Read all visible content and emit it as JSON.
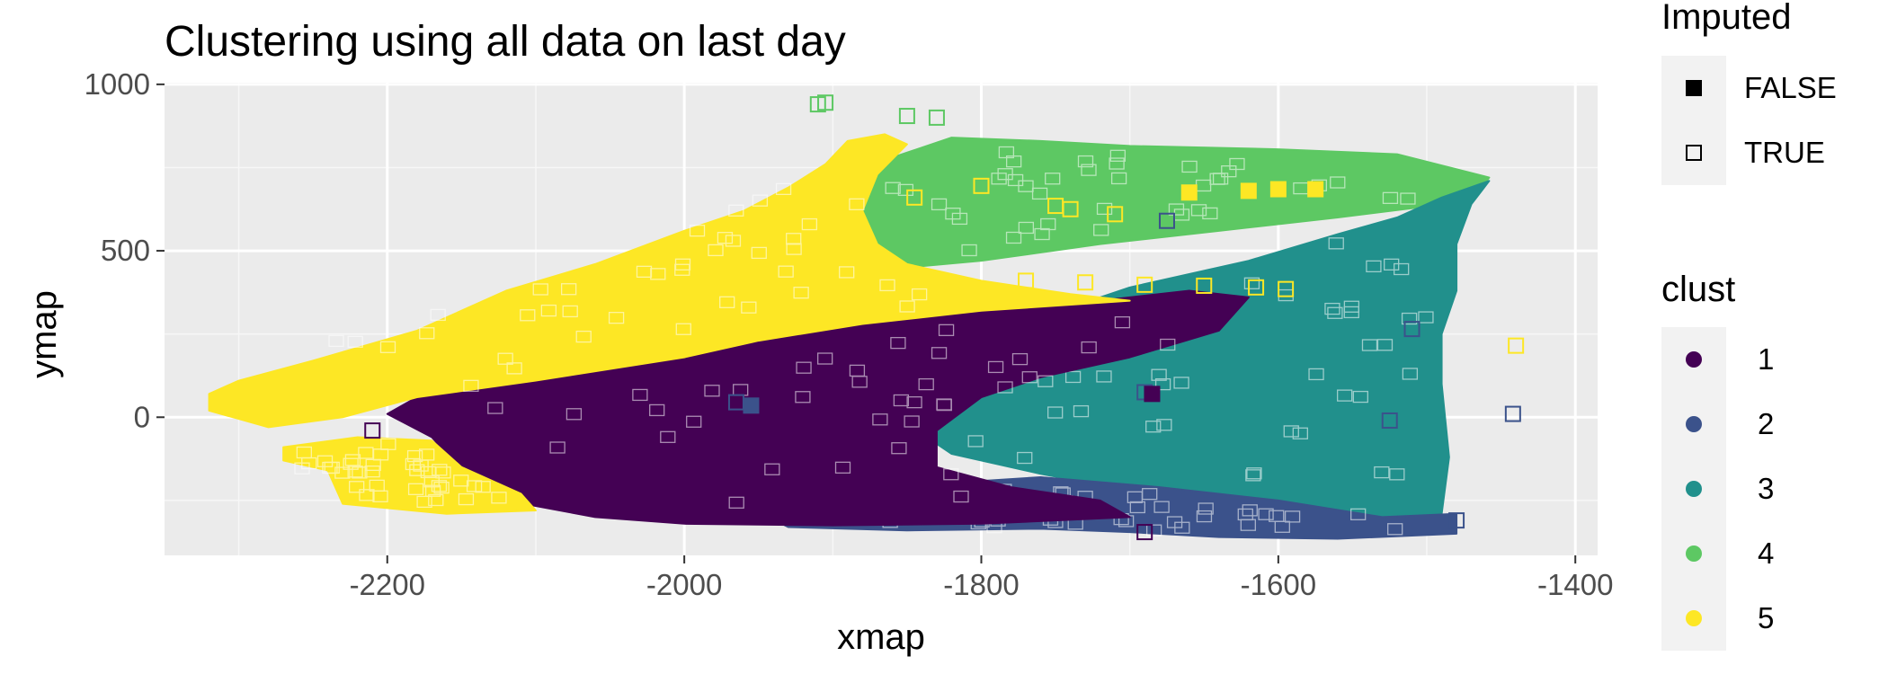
{
  "chart_data": {
    "type": "scatter",
    "title": "Clustering using all data on last day",
    "xlabel": "xmap",
    "ylabel": "ymap",
    "xlim": [
      -2350,
      -1385
    ],
    "ylim": [
      -415,
      1005
    ],
    "x_ticks": [
      {
        "value": -2200,
        "label": "-2200"
      },
      {
        "value": -2000,
        "label": "-2000"
      },
      {
        "value": -1800,
        "label": "-1800"
      },
      {
        "value": -1600,
        "label": "-1600"
      },
      {
        "value": -1400,
        "label": "-1400"
      }
    ],
    "y_ticks": [
      {
        "value": 1000,
        "label": "1000"
      },
      {
        "value": 500,
        "label": "500"
      },
      {
        "value": 0,
        "label": "0"
      }
    ],
    "minor_x": [
      -2300,
      -2100,
      -1900,
      -1700,
      -1500
    ],
    "minor_y": [
      750,
      250,
      -250
    ],
    "panel_background": "#ebebeb",
    "grid": true,
    "legend_placement": "right",
    "legends": {
      "imputed": {
        "title": "Imputed",
        "items": [
          {
            "label": "FALSE",
            "shape": "filled-square"
          },
          {
            "label": "TRUE",
            "shape": "open-square"
          }
        ]
      },
      "clust": {
        "title": "clust",
        "items": [
          {
            "label": "1",
            "color": "#440154"
          },
          {
            "label": "2",
            "color": "#3b528b"
          },
          {
            "label": "3",
            "color": "#21908c"
          },
          {
            "label": "4",
            "color": "#5dc863"
          },
          {
            "label": "5",
            "color": "#fde725"
          }
        ]
      }
    },
    "regions": [
      {
        "cluster": "4",
        "polygon": [
          [
            -1895,
            700
          ],
          [
            -1860,
            780
          ],
          [
            -1820,
            840
          ],
          [
            -1760,
            830
          ],
          [
            -1700,
            815
          ],
          [
            -1600,
            805
          ],
          [
            -1520,
            790
          ],
          [
            -1458,
            720
          ],
          [
            -1470,
            650
          ],
          [
            -1560,
            600
          ],
          [
            -1640,
            560
          ],
          [
            -1720,
            520
          ],
          [
            -1800,
            470
          ],
          [
            -1850,
            450
          ],
          [
            -1890,
            470
          ],
          [
            -1910,
            600
          ]
        ]
      },
      {
        "cluster": "3",
        "polygon": [
          [
            -1458,
            710
          ],
          [
            -1470,
            640
          ],
          [
            -1480,
            520
          ],
          [
            -1480,
            380
          ],
          [
            -1490,
            250
          ],
          [
            -1490,
            100
          ],
          [
            -1485,
            -120
          ],
          [
            -1490,
            -290
          ],
          [
            -1540,
            -310
          ],
          [
            -1620,
            -260
          ],
          [
            -1700,
            -220
          ],
          [
            -1760,
            -170
          ],
          [
            -1820,
            -110
          ],
          [
            -1850,
            -20
          ],
          [
            -1860,
            80
          ],
          [
            -1830,
            200
          ],
          [
            -1760,
            300
          ],
          [
            -1700,
            390
          ],
          [
            -1620,
            470
          ],
          [
            -1560,
            550
          ],
          [
            -1520,
            600
          ],
          [
            -1490,
            660
          ]
        ]
      },
      {
        "cluster": "2",
        "polygon": [
          [
            -1480,
            -290
          ],
          [
            -1530,
            -300
          ],
          [
            -1600,
            -250
          ],
          [
            -1680,
            -210
          ],
          [
            -1760,
            -180
          ],
          [
            -1830,
            -200
          ],
          [
            -1900,
            -250
          ],
          [
            -1950,
            -285
          ],
          [
            -1930,
            -330
          ],
          [
            -1850,
            -340
          ],
          [
            -1760,
            -335
          ],
          [
            -1700,
            -345
          ],
          [
            -1640,
            -360
          ],
          [
            -1560,
            -365
          ],
          [
            -1480,
            -350
          ]
        ]
      },
      {
        "cluster": "1",
        "polygon": [
          [
            -2180,
            60
          ],
          [
            -2100,
            110
          ],
          [
            -2000,
            180
          ],
          [
            -1950,
            230
          ],
          [
            -1880,
            280
          ],
          [
            -1800,
            320
          ],
          [
            -1720,
            350
          ],
          [
            -1660,
            380
          ],
          [
            -1620,
            360
          ],
          [
            -1640,
            260
          ],
          [
            -1700,
            180
          ],
          [
            -1760,
            120
          ],
          [
            -1800,
            60
          ],
          [
            -1830,
            -40
          ],
          [
            -1830,
            -150
          ],
          [
            -1780,
            -210
          ],
          [
            -1720,
            -250
          ],
          [
            -1700,
            -300
          ],
          [
            -1800,
            -320
          ],
          [
            -1900,
            -325
          ],
          [
            -2000,
            -320
          ],
          [
            -2060,
            -300
          ],
          [
            -2120,
            -250
          ],
          [
            -2150,
            -160
          ],
          [
            -2170,
            -60
          ],
          [
            -2200,
            10
          ]
        ]
      },
      {
        "cluster": "5",
        "polygon": [
          [
            -2320,
            70
          ],
          [
            -2300,
            110
          ],
          [
            -2250,
            170
          ],
          [
            -2180,
            260
          ],
          [
            -2120,
            380
          ],
          [
            -2060,
            460
          ],
          [
            -2000,
            560
          ],
          [
            -1960,
            620
          ],
          [
            -1930,
            690
          ],
          [
            -1905,
            760
          ],
          [
            -1890,
            830
          ],
          [
            -1865,
            850
          ],
          [
            -1850,
            820
          ],
          [
            -1870,
            730
          ],
          [
            -1880,
            620
          ],
          [
            -1870,
            520
          ],
          [
            -1850,
            460
          ],
          [
            -1800,
            410
          ],
          [
            -1740,
            370
          ],
          [
            -1700,
            350
          ],
          [
            -1800,
            320
          ],
          [
            -1880,
            280
          ],
          [
            -1950,
            230
          ],
          [
            -2000,
            180
          ],
          [
            -2100,
            110
          ],
          [
            -2180,
            60
          ],
          [
            -2230,
            0
          ],
          [
            -2280,
            -30
          ],
          [
            -2320,
            20
          ]
        ]
      },
      {
        "cluster": "5",
        "polygon": [
          [
            -2270,
            -90
          ],
          [
            -2220,
            -60
          ],
          [
            -2170,
            -70
          ],
          [
            -2150,
            -150
          ],
          [
            -2110,
            -230
          ],
          [
            -2100,
            -280
          ],
          [
            -2160,
            -290
          ],
          [
            -2230,
            -260
          ],
          [
            -2240,
            -160
          ],
          [
            -2270,
            -130
          ]
        ]
      }
    ],
    "notable_points": [
      {
        "x": -1440,
        "y": 215,
        "cluster": "5",
        "imputed": "TRUE"
      },
      {
        "x": -1442,
        "y": 10,
        "cluster": "2",
        "imputed": "TRUE"
      },
      {
        "x": -1510,
        "y": 265,
        "cluster": "2",
        "imputed": "TRUE"
      },
      {
        "x": -1525,
        "y": -10,
        "cluster": "2",
        "imputed": "TRUE"
      },
      {
        "x": -1675,
        "y": 590,
        "cluster": "2",
        "imputed": "TRUE"
      },
      {
        "x": -1910,
        "y": 940,
        "cluster": "4",
        "imputed": "TRUE"
      },
      {
        "x": -1905,
        "y": 945,
        "cluster": "4",
        "imputed": "TRUE"
      },
      {
        "x": -1850,
        "y": 905,
        "cluster": "4",
        "imputed": "TRUE"
      },
      {
        "x": -1830,
        "y": 900,
        "cluster": "4",
        "imputed": "TRUE"
      },
      {
        "x": -1845,
        "y": 660,
        "cluster": "5",
        "imputed": "TRUE"
      },
      {
        "x": -1800,
        "y": 695,
        "cluster": "5",
        "imputed": "TRUE"
      },
      {
        "x": -1750,
        "y": 635,
        "cluster": "5",
        "imputed": "TRUE"
      },
      {
        "x": -1740,
        "y": 625,
        "cluster": "5",
        "imputed": "TRUE"
      },
      {
        "x": -1710,
        "y": 610,
        "cluster": "5",
        "imputed": "TRUE"
      },
      {
        "x": -1690,
        "y": 75,
        "cluster": "2",
        "imputed": "TRUE"
      },
      {
        "x": -1965,
        "y": 45,
        "cluster": "2",
        "imputed": "TRUE"
      },
      {
        "x": -1955,
        "y": 35,
        "cluster": "2",
        "imputed": "FALSE"
      },
      {
        "x": -1685,
        "y": 70,
        "cluster": "1",
        "imputed": "FALSE"
      },
      {
        "x": -2210,
        "y": -40,
        "cluster": "1",
        "imputed": "TRUE"
      },
      {
        "x": -1595,
        "y": 385,
        "cluster": "5",
        "imputed": "TRUE"
      },
      {
        "x": -1615,
        "y": 390,
        "cluster": "5",
        "imputed": "TRUE"
      },
      {
        "x": -1650,
        "y": 395,
        "cluster": "5",
        "imputed": "TRUE"
      },
      {
        "x": -1690,
        "y": 398,
        "cluster": "5",
        "imputed": "TRUE"
      },
      {
        "x": -1730,
        "y": 405,
        "cluster": "5",
        "imputed": "TRUE"
      },
      {
        "x": -1770,
        "y": 410,
        "cluster": "5",
        "imputed": "TRUE"
      },
      {
        "x": -1620,
        "y": 680,
        "cluster": "5",
        "imputed": "FALSE"
      },
      {
        "x": -1600,
        "y": 685,
        "cluster": "5",
        "imputed": "FALSE"
      },
      {
        "x": -1575,
        "y": 685,
        "cluster": "5",
        "imputed": "FALSE"
      },
      {
        "x": -1660,
        "y": 675,
        "cluster": "5",
        "imputed": "FALSE"
      },
      {
        "x": -1690,
        "y": -345,
        "cluster": "1",
        "imputed": "TRUE"
      },
      {
        "x": -1480,
        "y": -310,
        "cluster": "2",
        "imputed": "TRUE"
      }
    ]
  }
}
